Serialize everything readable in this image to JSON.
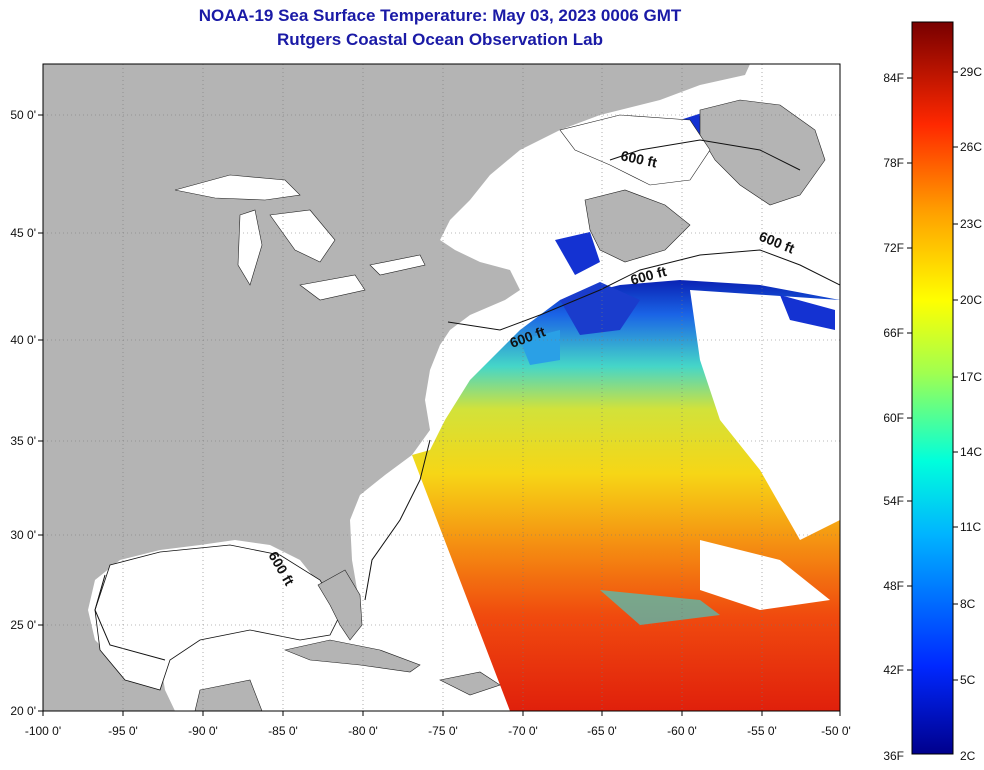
{
  "title": "NOAA-19 Sea Surface Temperature:  May 03, 2023 0006 GMT",
  "subtitle": "Rutgers Coastal Ocean Observation Lab",
  "lon_ticks": [
    "-100 0'",
    "-95 0'",
    "-90 0'",
    "-85 0'",
    "-80 0'",
    "-75 0'",
    "-70 0'",
    "-65 0'",
    "-60 0'",
    "-55 0'",
    "-50 0'"
  ],
  "lat_ticks": [
    "50 0'",
    "45 0'",
    "40 0'",
    "35 0'",
    "30 0'",
    "25 0'",
    "20 0'"
  ],
  "colorbar": {
    "f_labels": [
      "84F",
      "78F",
      "72F",
      "66F",
      "60F",
      "54F",
      "48F",
      "42F",
      "36F"
    ],
    "c_labels": [
      "29C",
      "26C",
      "23C",
      "20C",
      "17C",
      "14C",
      "11C",
      "8C",
      "5C",
      "2C"
    ]
  },
  "contour_label": "600 ft",
  "colors": {
    "land": "#b4b4b4",
    "title": "#1a1aa6",
    "warm": "#e81e0a",
    "cold": "#0a1ea0"
  }
}
